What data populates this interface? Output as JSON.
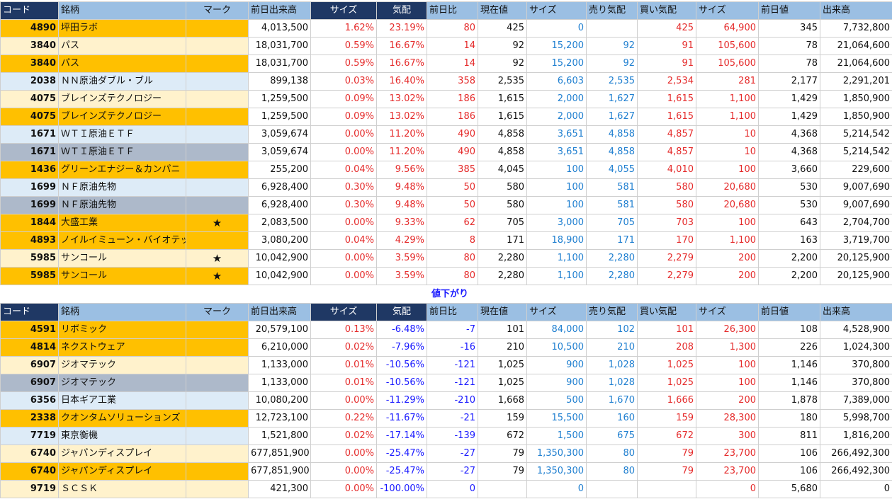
{
  "headers": [
    "コード",
    "銘柄",
    "マーク",
    "前日出来高",
    "サイズ",
    "気配",
    "前日比",
    "現在値",
    "サイズ",
    "売り気配",
    "買い気配",
    "サイズ",
    "前日値",
    "出来高"
  ],
  "section_divider": "値下がり",
  "colors": {
    "orange": "#ffc000",
    "cream": "#fff2cc",
    "light_blue": "#ddebf7",
    "gray": "#adb9ca",
    "header_blue": "#9bbfe3",
    "header_navy": "#1f3864",
    "red": "#e52b2b",
    "blue": "#1f7fd0"
  },
  "rising": [
    {
      "style": "orange",
      "code": "4890",
      "name": "坪田ラボ",
      "mark": "",
      "prev_volume": "4,013,500",
      "size1": "1.62%",
      "quote": "23.19%",
      "change": "80",
      "price": "425",
      "size2": "0",
      "ask": "",
      "bid": "425",
      "size3": "64,900",
      "prev_close": "345",
      "volume": "7,732,800"
    },
    {
      "style": "cream",
      "code": "3840",
      "name": "パス",
      "mark": "",
      "prev_volume": "18,031,700",
      "size1": "0.59%",
      "quote": "16.67%",
      "change": "14",
      "price": "92",
      "size2": "15,200",
      "ask": "92",
      "bid": "91",
      "size3": "105,600",
      "prev_close": "78",
      "volume": "21,064,600"
    },
    {
      "style": "orange",
      "code": "3840",
      "name": "パス",
      "mark": "",
      "prev_volume": "18,031,700",
      "size1": "0.59%",
      "quote": "16.67%",
      "change": "14",
      "price": "92",
      "size2": "15,200",
      "ask": "92",
      "bid": "91",
      "size3": "105,600",
      "prev_close": "78",
      "volume": "21,064,600"
    },
    {
      "style": "lblue",
      "code": "2038",
      "name": "ＮＮ原油ダブル・ブル",
      "mark": "",
      "prev_volume": "899,138",
      "size1": "0.03%",
      "quote": "16.40%",
      "change": "358",
      "price": "2,535",
      "size2": "6,603",
      "ask": "2,535",
      "bid": "2,534",
      "size3": "281",
      "prev_close": "2,177",
      "volume": "2,291,201"
    },
    {
      "style": "cream",
      "code": "4075",
      "name": "ブレインズテクノロジー",
      "mark": "",
      "prev_volume": "1,259,500",
      "size1": "0.09%",
      "quote": "13.02%",
      "change": "186",
      "price": "1,615",
      "size2": "2,000",
      "ask": "1,627",
      "bid": "1,615",
      "size3": "1,100",
      "prev_close": "1,429",
      "volume": "1,850,900"
    },
    {
      "style": "orange",
      "code": "4075",
      "name": "ブレインズテクノロジー",
      "mark": "",
      "prev_volume": "1,259,500",
      "size1": "0.09%",
      "quote": "13.02%",
      "change": "186",
      "price": "1,615",
      "size2": "2,000",
      "ask": "1,627",
      "bid": "1,615",
      "size3": "1,100",
      "prev_close": "1,429",
      "volume": "1,850,900"
    },
    {
      "style": "lblue",
      "code": "1671",
      "name": "ＷＴＩ原油ＥＴＦ",
      "mark": "",
      "prev_volume": "3,059,674",
      "size1": "0.00%",
      "quote": "11.20%",
      "change": "490",
      "price": "4,858",
      "size2": "3,651",
      "ask": "4,858",
      "bid": "4,857",
      "size3": "10",
      "prev_close": "4,368",
      "volume": "5,214,542"
    },
    {
      "style": "gray",
      "code": "1671",
      "name": "ＷＴＩ原油ＥＴＦ",
      "mark": "",
      "prev_volume": "3,059,674",
      "size1": "0.00%",
      "quote": "11.20%",
      "change": "490",
      "price": "4,858",
      "size2": "3,651",
      "ask": "4,858",
      "bid": "4,857",
      "size3": "10",
      "prev_close": "4,368",
      "volume": "5,214,542"
    },
    {
      "style": "orange",
      "code": "1436",
      "name": "グリーンエナジー＆カンパニ",
      "mark": "",
      "prev_volume": "255,200",
      "size1": "0.04%",
      "quote": "9.56%",
      "change": "385",
      "price": "4,045",
      "size2": "100",
      "ask": "4,055",
      "bid": "4,010",
      "size3": "100",
      "prev_close": "3,660",
      "volume": "229,600"
    },
    {
      "style": "lblue",
      "code": "1699",
      "name": "ＮＦ原油先物",
      "mark": "",
      "prev_volume": "6,928,400",
      "size1": "0.30%",
      "quote": "9.48%",
      "change": "50",
      "price": "580",
      "size2": "100",
      "ask": "581",
      "bid": "580",
      "size3": "20,680",
      "prev_close": "530",
      "volume": "9,007,690"
    },
    {
      "style": "gray",
      "code": "1699",
      "name": "ＮＦ原油先物",
      "mark": "",
      "prev_volume": "6,928,400",
      "size1": "0.30%",
      "quote": "9.48%",
      "change": "50",
      "price": "580",
      "size2": "100",
      "ask": "581",
      "bid": "580",
      "size3": "20,680",
      "prev_close": "530",
      "volume": "9,007,690"
    },
    {
      "style": "orange",
      "code": "1844",
      "name": "大盛工業",
      "mark": "★",
      "prev_volume": "2,083,500",
      "size1": "0.00%",
      "quote": "9.33%",
      "change": "62",
      "price": "705",
      "size2": "3,000",
      "ask": "705",
      "bid": "703",
      "size3": "100",
      "prev_close": "643",
      "volume": "2,704,700"
    },
    {
      "style": "orange",
      "code": "4893",
      "name": "ノイルイミューン・バイオテック",
      "mark": "",
      "prev_volume": "3,080,200",
      "size1": "0.04%",
      "quote": "4.29%",
      "change": "8",
      "price": "171",
      "size2": "18,900",
      "ask": "171",
      "bid": "170",
      "size3": "1,100",
      "prev_close": "163",
      "volume": "3,719,700"
    },
    {
      "style": "cream",
      "code": "5985",
      "name": "サンコール",
      "mark": "★",
      "prev_volume": "10,042,900",
      "size1": "0.00%",
      "quote": "3.59%",
      "change": "80",
      "price": "2,280",
      "size2": "1,100",
      "ask": "2,280",
      "bid": "2,279",
      "size3": "200",
      "prev_close": "2,200",
      "volume": "20,125,900"
    },
    {
      "style": "orange",
      "code": "5985",
      "name": "サンコール",
      "mark": "★",
      "prev_volume": "10,042,900",
      "size1": "0.00%",
      "quote": "3.59%",
      "change": "80",
      "price": "2,280",
      "size2": "1,100",
      "ask": "2,280",
      "bid": "2,279",
      "size3": "200",
      "prev_close": "2,200",
      "volume": "20,125,900"
    }
  ],
  "falling": [
    {
      "style": "orange",
      "code": "4591",
      "name": "リボミック",
      "mark": "",
      "prev_volume": "20,579,100",
      "size1": "0.13%",
      "quote": "-6.48%",
      "change": "-7",
      "price": "101",
      "size2": "84,000",
      "ask": "102",
      "bid": "101",
      "size3": "26,300",
      "prev_close": "108",
      "volume": "4,528,900"
    },
    {
      "style": "orange",
      "code": "4814",
      "name": "ネクストウェア",
      "mark": "",
      "prev_volume": "6,210,000",
      "size1": "0.02%",
      "quote": "-7.96%",
      "change": "-16",
      "price": "210",
      "size2": "10,500",
      "ask": "210",
      "bid": "208",
      "size3": "1,300",
      "prev_close": "226",
      "volume": "1,024,300"
    },
    {
      "style": "cream",
      "code": "6907",
      "name": "ジオマテック",
      "mark": "",
      "prev_volume": "1,133,000",
      "size1": "0.01%",
      "quote": "-10.56%",
      "change": "-121",
      "price": "1,025",
      "size2": "900",
      "ask": "1,028",
      "bid": "1,025",
      "size3": "100",
      "prev_close": "1,146",
      "volume": "370,800"
    },
    {
      "style": "gray",
      "code": "6907",
      "name": "ジオマテック",
      "mark": "",
      "prev_volume": "1,133,000",
      "size1": "0.01%",
      "quote": "-10.56%",
      "change": "-121",
      "price": "1,025",
      "size2": "900",
      "ask": "1,028",
      "bid": "1,025",
      "size3": "100",
      "prev_close": "1,146",
      "volume": "370,800"
    },
    {
      "style": "lblue",
      "code": "6356",
      "name": "日本ギア工業",
      "mark": "",
      "prev_volume": "10,080,200",
      "size1": "0.00%",
      "quote": "-11.29%",
      "change": "-210",
      "price": "1,668",
      "size2": "500",
      "ask": "1,670",
      "bid": "1,666",
      "size3": "200",
      "prev_close": "1,878",
      "volume": "7,389,000"
    },
    {
      "style": "orange",
      "code": "2338",
      "name": "クオンタムソリューションズ",
      "mark": "",
      "prev_volume": "12,723,100",
      "size1": "0.22%",
      "quote": "-11.67%",
      "change": "-21",
      "price": "159",
      "size2": "15,500",
      "ask": "160",
      "bid": "159",
      "size3": "28,300",
      "prev_close": "180",
      "volume": "5,998,700"
    },
    {
      "style": "lblue",
      "code": "7719",
      "name": "東京衡機",
      "mark": "",
      "prev_volume": "1,521,800",
      "size1": "0.02%",
      "quote": "-17.14%",
      "change": "-139",
      "price": "672",
      "size2": "1,500",
      "ask": "675",
      "bid": "672",
      "size3": "300",
      "prev_close": "811",
      "volume": "1,816,200"
    },
    {
      "style": "cream",
      "code": "6740",
      "name": "ジャパンディスプレイ",
      "mark": "",
      "prev_volume": "677,851,900",
      "size1": "0.00%",
      "quote": "-25.47%",
      "change": "-27",
      "price": "79",
      "size2": "1,350,300",
      "ask": "80",
      "bid": "79",
      "size3": "23,700",
      "prev_close": "106",
      "volume": "266,492,300"
    },
    {
      "style": "orange",
      "code": "6740",
      "name": "ジャパンディスプレイ",
      "mark": "",
      "prev_volume": "677,851,900",
      "size1": "0.00%",
      "quote": "-25.47%",
      "change": "-27",
      "price": "79",
      "size2": "1,350,300",
      "ask": "80",
      "bid": "79",
      "size3": "23,700",
      "prev_close": "106",
      "volume": "266,492,300"
    },
    {
      "style": "cream",
      "code": "9719",
      "name": "ＳＣＳＫ",
      "mark": "",
      "prev_volume": "421,300",
      "size1": "0.00%",
      "quote": "-100.00%",
      "change": "0",
      "price": "",
      "size2": "0",
      "ask": "",
      "bid": "",
      "size3": "0",
      "prev_close": "5,680",
      "volume": "0"
    }
  ]
}
